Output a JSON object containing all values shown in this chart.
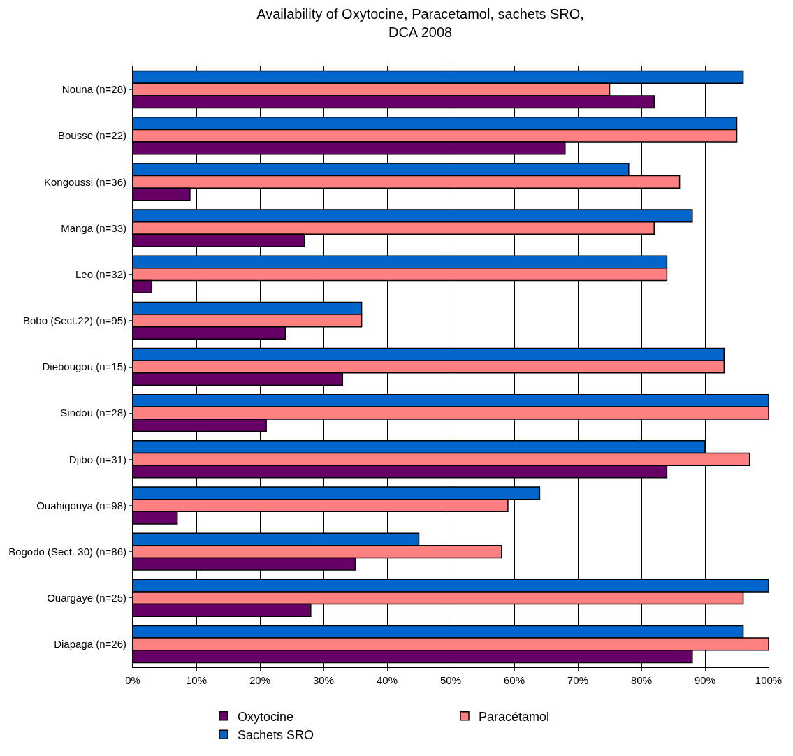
{
  "chart_data": {
    "type": "bar",
    "orientation": "horizontal",
    "title": "Availability of Oxytocine, Paracetamol, sachets SRO,\nDCA 2008",
    "categories": [
      "Nouna (n=28)",
      "Bousse (n=22)",
      "Kongoussi (n=36)",
      "Manga (n=33)",
      "Leo (n=32)",
      "Bobo (Sect.22) (n=95)",
      "Diebougou (n=15)",
      "Sindou (n=28)",
      "Djibo (n=31)",
      "Ouahigouya (n=98)",
      "Bogodo (Sect. 30) (n=86)",
      "Ouargaye (n=25)",
      "Diapaga (n=26)"
    ],
    "series": [
      {
        "name": "Oxytocine",
        "color": "#660066",
        "values": [
          82,
          68,
          9,
          27,
          3,
          24,
          33,
          21,
          84,
          7,
          35,
          28,
          88
        ]
      },
      {
        "name": "Paracétamol",
        "color": "#ff8080",
        "values": [
          75,
          95,
          86,
          82,
          84,
          36,
          93,
          100,
          97,
          59,
          58,
          96,
          100
        ]
      },
      {
        "name": "Sachets SRO",
        "color": "#0066cc",
        "values": [
          96,
          95,
          78,
          88,
          84,
          36,
          93,
          100,
          90,
          64,
          45,
          100,
          96
        ]
      }
    ],
    "xlim": [
      0,
      100
    ],
    "xticks": [
      {
        "value": 0,
        "label": "0%"
      },
      {
        "value": 10,
        "label": "10%"
      },
      {
        "value": 20,
        "label": "20%"
      },
      {
        "value": 30,
        "label": "30%"
      },
      {
        "value": 40,
        "label": "40%"
      },
      {
        "value": 50,
        "label": "50%"
      },
      {
        "value": 60,
        "label": "60%"
      },
      {
        "value": 70,
        "label": "70%"
      },
      {
        "value": 80,
        "label": "80%"
      },
      {
        "value": 90,
        "label": "90%"
      },
      {
        "value": 100,
        "label": "100%"
      }
    ],
    "grid": "x",
    "legend": "bottom"
  }
}
